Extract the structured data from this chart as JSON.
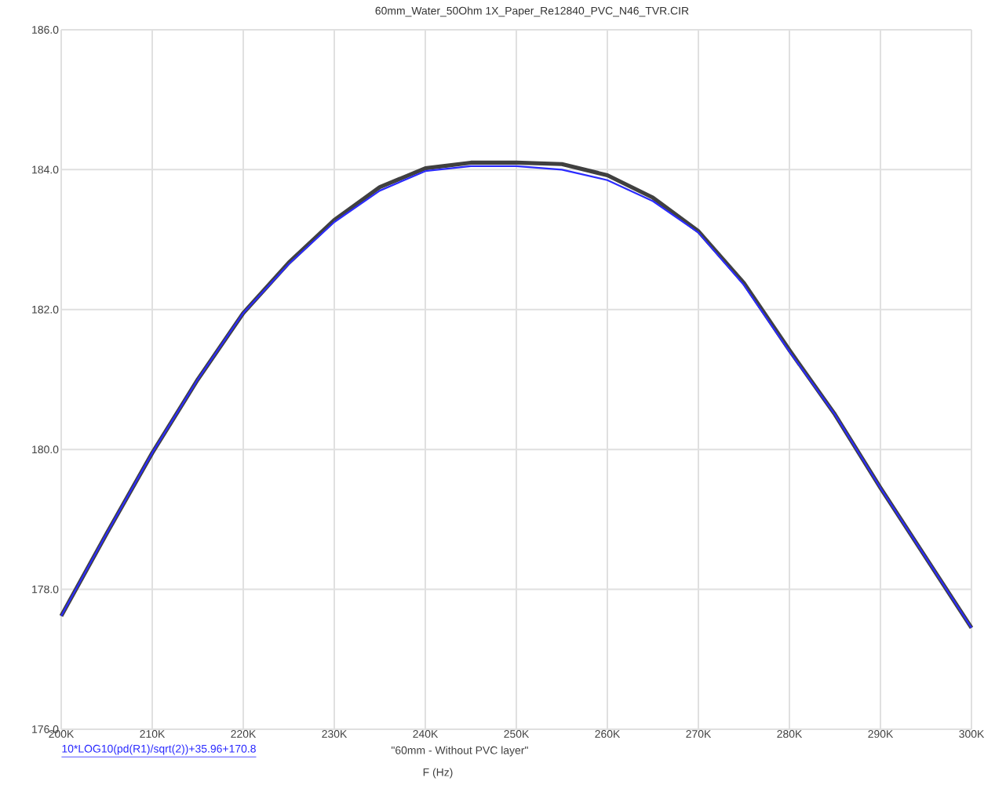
{
  "chart_data": {
    "type": "line",
    "title": "60mm_Water_50Ohm 1X_Paper_Re12840_PVC_N46_TVR.CIR",
    "xlabel": "F (Hz)",
    "x": [
      200000,
      205000,
      210000,
      215000,
      220000,
      225000,
      230000,
      235000,
      240000,
      245000,
      250000,
      255000,
      260000,
      265000,
      270000,
      275000,
      280000,
      285000,
      290000,
      295000,
      300000
    ],
    "series": [
      {
        "name": "10*LOG10(pd(R1)/sqrt(2))+35.96+170.8",
        "color": "#2b2bff",
        "values": [
          177.62,
          178.8,
          179.95,
          181.0,
          181.95,
          182.65,
          183.25,
          183.7,
          183.98,
          184.05,
          184.05,
          184.0,
          183.85,
          183.55,
          183.1,
          182.35,
          181.4,
          180.5,
          179.45,
          178.45,
          177.45
        ]
      },
      {
        "name": "\"60mm - Without PVC layer\"",
        "color": "#404040",
        "values": [
          177.62,
          178.8,
          179.95,
          181.0,
          181.95,
          182.67,
          183.28,
          183.75,
          184.02,
          184.1,
          184.1,
          184.08,
          183.92,
          183.6,
          183.12,
          182.38,
          181.42,
          180.5,
          179.45,
          178.45,
          177.45
        ]
      }
    ],
    "xlim": [
      200000,
      300000
    ],
    "xticks": [
      {
        "value": 200000,
        "label": "200K"
      },
      {
        "value": 210000,
        "label": "210K"
      },
      {
        "value": 220000,
        "label": "220K"
      },
      {
        "value": 230000,
        "label": "230K"
      },
      {
        "value": 240000,
        "label": "240K"
      },
      {
        "value": 250000,
        "label": "250K"
      },
      {
        "value": 260000,
        "label": "260K"
      },
      {
        "value": 270000,
        "label": "270K"
      },
      {
        "value": 280000,
        "label": "280K"
      },
      {
        "value": 290000,
        "label": "290K"
      },
      {
        "value": 300000,
        "label": "300K"
      }
    ],
    "ylim": [
      176,
      186
    ],
    "yticks": [
      {
        "value": 176,
        "label": "176.0"
      },
      {
        "value": 178,
        "label": "178.0"
      },
      {
        "value": 180,
        "label": "180.0"
      },
      {
        "value": 182,
        "label": "182.0"
      },
      {
        "value": 184,
        "label": "184.0"
      },
      {
        "value": 186,
        "label": "186.0"
      }
    ],
    "grid": true,
    "legend": "bottom",
    "marker": "none",
    "line_style": "solid"
  }
}
